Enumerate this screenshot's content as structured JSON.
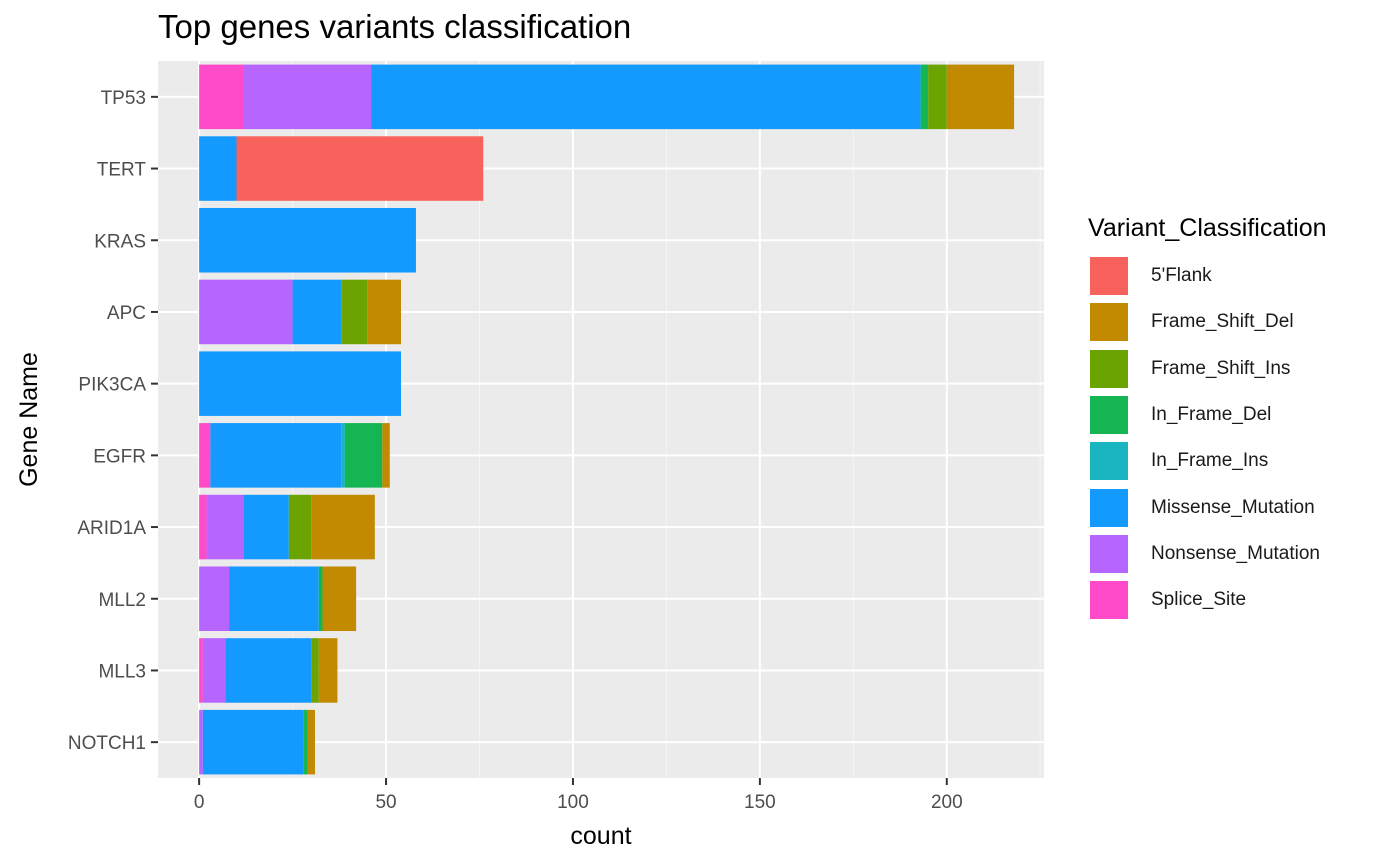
{
  "chart_data": {
    "type": "bar",
    "orientation": "horizontal",
    "stacked": true,
    "title": "Top genes variants classification",
    "xlabel": "count",
    "ylabel": "Gene Name",
    "xlim": [
      -11,
      226
    ],
    "xticks": [
      0,
      50,
      100,
      150,
      200
    ],
    "grid": true,
    "legend_position": "right",
    "legend_title": "Variant_Classification",
    "categories": [
      "TP53",
      "TERT",
      "KRAS",
      "APC",
      "PIK3CA",
      "EGFR",
      "ARID1A",
      "MLL2",
      "MLL3",
      "NOTCH1"
    ],
    "series": [
      {
        "name": "Splice_Site",
        "color": "#FF4BC9",
        "values": [
          12,
          0,
          0,
          0,
          0,
          3,
          2,
          0,
          1,
          0
        ]
      },
      {
        "name": "Nonsense_Mutation",
        "color": "#B765FF",
        "values": [
          34,
          0,
          0,
          25,
          0,
          0,
          10,
          8,
          6,
          1
        ]
      },
      {
        "name": "Missense_Mutation",
        "color": "#1499FF",
        "values": [
          147,
          10,
          58,
          13,
          54,
          35,
          12,
          24,
          23,
          27
        ]
      },
      {
        "name": "In_Frame_Ins",
        "color": "#1AB5C0",
        "values": [
          0,
          0,
          0,
          0,
          0,
          1,
          0,
          0,
          0,
          0
        ]
      },
      {
        "name": "In_Frame_Del",
        "color": "#15B553",
        "values": [
          2,
          0,
          0,
          0,
          0,
          10,
          0,
          1,
          0,
          1
        ]
      },
      {
        "name": "Frame_Shift_Ins",
        "color": "#6BA300",
        "values": [
          5,
          0,
          0,
          7,
          0,
          0,
          6,
          0,
          2,
          0
        ]
      },
      {
        "name": "Frame_Shift_Del",
        "color": "#C18A00",
        "values": [
          18,
          0,
          0,
          9,
          0,
          2,
          17,
          9,
          5,
          2
        ]
      },
      {
        "name": "5'Flank",
        "color": "#F8625C",
        "values": [
          0,
          66,
          0,
          0,
          0,
          0,
          0,
          0,
          0,
          0
        ]
      }
    ]
  },
  "legend": {
    "title": "Variant_Classification",
    "items": [
      {
        "label": "5'Flank",
        "color": "#F8625C"
      },
      {
        "label": "Frame_Shift_Del",
        "color": "#C18A00"
      },
      {
        "label": "Frame_Shift_Ins",
        "color": "#6BA300"
      },
      {
        "label": "In_Frame_Del",
        "color": "#15B553"
      },
      {
        "label": "In_Frame_Ins",
        "color": "#1AB5C0"
      },
      {
        "label": "Missense_Mutation",
        "color": "#1499FF"
      },
      {
        "label": "Nonsense_Mutation",
        "color": "#B765FF"
      },
      {
        "label": "Splice_Site",
        "color": "#FF4BC9"
      }
    ]
  },
  "colors": {
    "panel_background": "#EBEBEB",
    "grid_major": "#FFFFFF",
    "grid_minor": "#F5F5F5",
    "tick_text": "#4D4D4D"
  }
}
